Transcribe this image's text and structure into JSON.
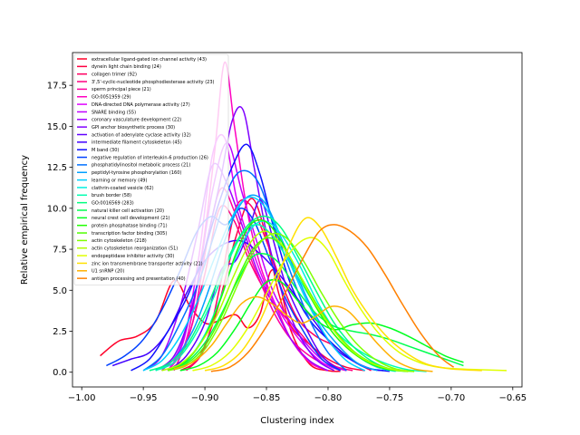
{
  "chart_data": {
    "type": "line",
    "title": "",
    "xlabel": "Clustering index",
    "ylabel": "Relative empirical frequency",
    "xlim": [
      -1.0075,
      -0.6425
    ],
    "ylim": [
      -0.9,
      19.5
    ],
    "xticks": [
      -1.0,
      -0.95,
      -0.9,
      -0.85,
      -0.8,
      -0.75,
      -0.7,
      -0.65
    ],
    "xtick_labels": [
      "−1.00",
      "−0.95",
      "−0.90",
      "−0.85",
      "−0.80",
      "−0.75",
      "−0.70",
      "−0.65"
    ],
    "yticks": [
      0.0,
      2.5,
      5.0,
      7.5,
      10.0,
      12.5,
      15.0,
      17.5
    ],
    "ytick_labels": [
      "0.0",
      "2.5",
      "5.0",
      "7.5",
      "10.0",
      "12.5",
      "15.0",
      "17.5"
    ],
    "grid": false,
    "legend_position": "top-left",
    "series": [
      {
        "name": "extracellular ligand-gated ion channel activity (43)",
        "color": "#ff0029",
        "x": [
          -0.985,
          -0.97,
          -0.955,
          -0.94,
          -0.925,
          -0.912,
          -0.9,
          -0.89,
          -0.875,
          -0.865,
          -0.855,
          -0.847,
          -0.84,
          -0.83,
          -0.815,
          -0.8,
          -0.79
        ],
        "y": [
          1.0,
          1.9,
          2.2,
          3.1,
          5.6,
          4.0,
          3.0,
          3.1,
          3.5,
          2.7,
          3.6,
          6.1,
          5.6,
          2.5,
          0.5,
          0.1,
          0.05
        ]
      },
      {
        "name": "dynein light chain binding (24)",
        "color": "#ff0040",
        "x": [
          -0.92,
          -0.905,
          -0.89,
          -0.875,
          -0.862,
          -0.85,
          -0.84,
          -0.83,
          -0.815,
          -0.8,
          -0.785,
          -0.77
        ],
        "y": [
          0.1,
          0.9,
          3.8,
          8.2,
          10.6,
          8.2,
          4.8,
          2.8,
          1.7,
          0.8,
          0.3,
          0.1
        ]
      },
      {
        "name": "collagen trimer (92)",
        "color": "#ff0060",
        "x": [
          -0.915,
          -0.9,
          -0.887,
          -0.875,
          -0.863,
          -0.85,
          -0.838,
          -0.825,
          -0.81,
          -0.795,
          -0.78,
          -0.765
        ],
        "y": [
          0.1,
          1.5,
          5.5,
          10.0,
          10.2,
          8.0,
          5.5,
          3.3,
          2.2,
          1.6,
          0.7,
          0.1
        ]
      },
      {
        "name": "3',5'-cyclic-nucleotide phosphodiesterase activity (23)",
        "color": "#ff0080",
        "x": [
          -0.93,
          -0.915,
          -0.9,
          -0.888,
          -0.876,
          -0.865,
          -0.853,
          -0.84,
          -0.825,
          -0.81,
          -0.795,
          -0.78
        ],
        "y": [
          0.1,
          1.8,
          6.0,
          10.0,
          9.2,
          7.0,
          5.2,
          3.8,
          2.6,
          1.3,
          0.4,
          0.1
        ]
      },
      {
        "name": "sperm principal piece (21)",
        "color": "#ff00a0",
        "x": [
          -0.925,
          -0.91,
          -0.898,
          -0.887,
          -0.876,
          -0.866,
          -0.855,
          -0.843,
          -0.83,
          -0.815,
          -0.8,
          -0.785
        ],
        "y": [
          0.1,
          3.0,
          8.0,
          11.2,
          9.8,
          7.6,
          5.5,
          3.5,
          2.0,
          1.0,
          0.4,
          0.1
        ]
      },
      {
        "name": "GO:0051959 (29)",
        "color": "#ff00c0",
        "x": [
          -0.93,
          -0.915,
          -0.902,
          -0.892,
          -0.884,
          -0.876,
          -0.866,
          -0.855,
          -0.842,
          -0.83,
          -0.815,
          -0.8
        ],
        "y": [
          0.1,
          2.0,
          7.5,
          13.5,
          18.9,
          15.0,
          10.0,
          6.5,
          4.0,
          2.0,
          0.6,
          0.1
        ]
      },
      {
        "name": "DNA-directed DNA polymerase activity (27)",
        "color": "#e000ff",
        "x": [
          -0.93,
          -0.917,
          -0.905,
          -0.894,
          -0.884,
          -0.874,
          -0.863,
          -0.85,
          -0.836,
          -0.82,
          -0.805,
          -0.79
        ],
        "y": [
          0.1,
          2.0,
          7.0,
          13.2,
          14.3,
          10.5,
          7.8,
          5.2,
          3.3,
          1.7,
          0.6,
          0.1
        ]
      },
      {
        "name": "SNARE binding (55)",
        "color": "#c000ff",
        "x": [
          -0.935,
          -0.92,
          -0.906,
          -0.894,
          -0.882,
          -0.87,
          -0.858,
          -0.845,
          -0.83,
          -0.815,
          -0.8,
          -0.785
        ],
        "y": [
          0.1,
          1.5,
          5.5,
          11.0,
          14.0,
          11.0,
          8.0,
          5.0,
          3.0,
          1.5,
          0.5,
          0.1
        ]
      },
      {
        "name": "coronary vasculature development (22)",
        "color": "#a000ff",
        "x": [
          -0.95,
          -0.935,
          -0.92,
          -0.906,
          -0.894,
          -0.882,
          -0.87,
          -0.858,
          -0.845,
          -0.83,
          -0.815,
          -0.8
        ],
        "y": [
          0.1,
          1.0,
          4.0,
          8.5,
          12.6,
          11.5,
          9.0,
          6.3,
          4.2,
          2.0,
          0.7,
          0.1
        ]
      },
      {
        "name": "GPI anchor biosynthetic process (30)",
        "color": "#8000ff",
        "x": [
          -0.94,
          -0.925,
          -0.912,
          -0.9,
          -0.888,
          -0.878,
          -0.869,
          -0.86,
          -0.85,
          -0.838,
          -0.825,
          -0.81,
          -0.795
        ],
        "y": [
          0.1,
          1.0,
          3.5,
          7.5,
          11.5,
          15.3,
          16.0,
          12.5,
          8.5,
          5.0,
          2.5,
          0.8,
          0.1
        ]
      },
      {
        "name": "activation of adenylate cyclase activity (32)",
        "color": "#6000ff",
        "x": [
          -0.93,
          -0.915,
          -0.9,
          -0.887,
          -0.875,
          -0.865,
          -0.855,
          -0.845,
          -0.835,
          -0.82,
          -0.805,
          -0.79
        ],
        "y": [
          0.1,
          1.0,
          3.0,
          6.2,
          6.8,
          8.5,
          10.5,
          8.2,
          5.5,
          3.0,
          1.0,
          0.1
        ]
      },
      {
        "name": "intermediate filament cytoskeleton (45)",
        "color": "#4000ff",
        "x": [
          -0.975,
          -0.96,
          -0.945,
          -0.93,
          -0.915,
          -0.9,
          -0.885,
          -0.87,
          -0.855,
          -0.84,
          -0.825,
          -0.81,
          -0.795,
          -0.78,
          -0.765,
          -0.755
        ],
        "y": [
          0.4,
          0.8,
          1.2,
          2.5,
          4.8,
          6.8,
          7.8,
          8.0,
          7.2,
          6.0,
          4.5,
          3.0,
          1.5,
          0.7,
          0.2,
          0.1
        ]
      },
      {
        "name": "M band (30)",
        "color": "#1010ff",
        "x": [
          -0.96,
          -0.945,
          -0.93,
          -0.915,
          -0.902,
          -0.89,
          -0.878,
          -0.866,
          -0.855,
          -0.843,
          -0.83,
          -0.815,
          -0.8,
          -0.785,
          -0.77,
          -0.75
        ],
        "y": [
          0.1,
          0.8,
          2.5,
          4.5,
          7.0,
          10.0,
          12.5,
          13.9,
          12.0,
          8.5,
          5.3,
          3.2,
          2.0,
          1.0,
          0.3,
          0.05
        ]
      },
      {
        "name": "negative regulation of interleukin-6 production (26)",
        "color": "#0040ff",
        "x": [
          -0.98,
          -0.965,
          -0.95,
          -0.935,
          -0.92,
          -0.907,
          -0.895,
          -0.883,
          -0.871,
          -0.86,
          -0.848,
          -0.835,
          -0.82,
          -0.805,
          -0.79
        ],
        "y": [
          0.4,
          1.0,
          2.0,
          3.8,
          6.2,
          8.5,
          9.5,
          9.0,
          10.0,
          9.2,
          7.0,
          4.6,
          2.5,
          0.8,
          0.1
        ]
      },
      {
        "name": "phosphatidylinositol metabolic process (21)",
        "color": "#0070ff",
        "x": [
          -0.95,
          -0.935,
          -0.92,
          -0.905,
          -0.892,
          -0.879,
          -0.868,
          -0.856,
          -0.844,
          -0.83,
          -0.815,
          -0.8,
          -0.785
        ],
        "y": [
          0.1,
          1.0,
          3.0,
          5.5,
          8.5,
          11.5,
          12.3,
          11.5,
          9.0,
          6.0,
          3.2,
          1.2,
          0.1
        ]
      },
      {
        "name": "peptidyl-tyrosine phosphorylation (160)",
        "color": "#00a0ff",
        "x": [
          -0.94,
          -0.925,
          -0.91,
          -0.897,
          -0.885,
          -0.873,
          -0.862,
          -0.85,
          -0.837,
          -0.823,
          -0.808,
          -0.79,
          -0.775,
          -0.76
        ],
        "y": [
          0.1,
          0.8,
          2.5,
          5.0,
          7.8,
          10.0,
          10.8,
          10.2,
          8.0,
          5.5,
          3.2,
          1.5,
          0.5,
          0.1
        ]
      },
      {
        "name": "learning or memory (49)",
        "color": "#00d0ff",
        "x": [
          -0.95,
          -0.935,
          -0.92,
          -0.905,
          -0.892,
          -0.879,
          -0.867,
          -0.855,
          -0.843,
          -0.83,
          -0.815,
          -0.8,
          -0.785,
          -0.77
        ],
        "y": [
          0.1,
          0.7,
          2.2,
          4.5,
          7.0,
          9.3,
          10.6,
          10.4,
          9.0,
          6.5,
          4.0,
          2.0,
          0.7,
          0.1
        ]
      },
      {
        "name": "clathrin-coated vesicle (62)",
        "color": "#00f0e0",
        "x": [
          -0.93,
          -0.915,
          -0.9,
          -0.887,
          -0.875,
          -0.862,
          -0.85,
          -0.837,
          -0.823,
          -0.808,
          -0.792,
          -0.776,
          -0.76,
          -0.745
        ],
        "y": [
          0.1,
          0.7,
          2.3,
          4.6,
          7.0,
          8.8,
          9.2,
          8.3,
          6.5,
          4.2,
          2.3,
          1.0,
          0.3,
          0.05
        ]
      },
      {
        "name": "brush border (58)",
        "color": "#00ffb0",
        "x": [
          -0.94,
          -0.925,
          -0.91,
          -0.895,
          -0.882,
          -0.869,
          -0.857,
          -0.845,
          -0.832,
          -0.818,
          -0.803,
          -0.787,
          -0.77,
          -0.752,
          -0.735,
          -0.72
        ],
        "y": [
          0.1,
          0.6,
          2.0,
          4.2,
          6.6,
          8.5,
          9.0,
          8.3,
          6.8,
          5.0,
          3.3,
          2.0,
          1.1,
          0.5,
          0.15,
          0.05
        ]
      },
      {
        "name": "GO:0016569 (283)",
        "color": "#00ff80",
        "x": [
          -0.945,
          -0.93,
          -0.915,
          -0.9,
          -0.887,
          -0.874,
          -0.862,
          -0.85,
          -0.838,
          -0.824,
          -0.81,
          -0.795,
          -0.78,
          -0.765,
          -0.75,
          -0.735
        ],
        "y": [
          0.1,
          0.5,
          1.6,
          3.7,
          6.0,
          8.0,
          9.2,
          9.5,
          8.8,
          7.0,
          5.0,
          3.0,
          1.6,
          0.7,
          0.2,
          0.05
        ]
      },
      {
        "name": "natural killer cell activation (20)",
        "color": "#00ff50",
        "x": [
          -0.93,
          -0.915,
          -0.9,
          -0.887,
          -0.874,
          -0.862,
          -0.85,
          -0.838,
          -0.825,
          -0.81,
          -0.795,
          -0.78,
          -0.765,
          -0.75,
          -0.735,
          -0.72,
          -0.705,
          -0.69
        ],
        "y": [
          0.1,
          0.6,
          1.8,
          3.5,
          5.5,
          7.0,
          7.2,
          6.5,
          5.0,
          3.6,
          2.8,
          2.5,
          2.3,
          2.0,
          1.6,
          1.2,
          0.8,
          0.4
        ]
      },
      {
        "name": "neural crest cell development (21)",
        "color": "#00ff20",
        "x": [
          -0.92,
          -0.905,
          -0.89,
          -0.875,
          -0.862,
          -0.85,
          -0.838,
          -0.825,
          -0.81,
          -0.795,
          -0.78,
          -0.765,
          -0.75,
          -0.735,
          -0.72,
          -0.705,
          -0.69
        ],
        "y": [
          0.1,
          0.4,
          1.2,
          2.7,
          4.3,
          5.5,
          5.5,
          4.4,
          3.2,
          2.6,
          2.9,
          3.0,
          2.7,
          2.2,
          1.6,
          1.0,
          0.6
        ]
      },
      {
        "name": "protein phosphatase binding (71)",
        "color": "#20ff00",
        "x": [
          -0.93,
          -0.915,
          -0.9,
          -0.887,
          -0.875,
          -0.863,
          -0.851,
          -0.838,
          -0.824,
          -0.81,
          -0.795,
          -0.78,
          -0.765,
          -0.75,
          -0.735
        ],
        "y": [
          0.1,
          0.7,
          2.2,
          4.5,
          7.2,
          9.0,
          9.2,
          8.0,
          6.0,
          4.0,
          2.3,
          1.2,
          0.5,
          0.15,
          0.05
        ]
      },
      {
        "name": "transcription factor binding (305)",
        "color": "#50ff00",
        "x": [
          -0.93,
          -0.915,
          -0.9,
          -0.886,
          -0.873,
          -0.86,
          -0.848,
          -0.835,
          -0.822,
          -0.808,
          -0.793,
          -0.778,
          -0.762,
          -0.746,
          -0.73
        ],
        "y": [
          0.1,
          0.5,
          1.6,
          3.5,
          5.8,
          7.6,
          8.2,
          7.5,
          5.8,
          4.0,
          2.4,
          1.2,
          0.5,
          0.15,
          0.05
        ]
      },
      {
        "name": "actin cytoskeleton (218)",
        "color": "#80ff00",
        "x": [
          -0.93,
          -0.915,
          -0.9,
          -0.886,
          -0.873,
          -0.86,
          -0.847,
          -0.834,
          -0.82,
          -0.805,
          -0.79,
          -0.775,
          -0.76,
          -0.745,
          -0.73
        ],
        "y": [
          0.1,
          0.4,
          1.4,
          3.2,
          5.4,
          7.4,
          8.4,
          8.2,
          6.8,
          4.8,
          3.0,
          1.6,
          0.7,
          0.2,
          0.05
        ]
      },
      {
        "name": "actin cytoskeleton reorganization (51)",
        "color": "#b0ff00",
        "x": [
          -0.935,
          -0.92,
          -0.905,
          -0.89,
          -0.877,
          -0.864,
          -0.852,
          -0.84,
          -0.827,
          -0.813,
          -0.798,
          -0.782,
          -0.766,
          -0.75,
          -0.735
        ],
        "y": [
          0.1,
          0.5,
          1.6,
          3.5,
          5.8,
          7.8,
          8.6,
          8.0,
          6.5,
          4.5,
          2.8,
          1.4,
          0.6,
          0.2,
          0.05
        ]
      },
      {
        "name": "endopeptidase inhibitor activity (30)",
        "color": "#e0ff00",
        "x": [
          -0.91,
          -0.895,
          -0.88,
          -0.866,
          -0.852,
          -0.838,
          -0.825,
          -0.812,
          -0.8,
          -0.787,
          -0.773,
          -0.758,
          -0.742,
          -0.726,
          -0.71,
          -0.693,
          -0.675,
          -0.655
        ],
        "y": [
          0.1,
          0.4,
          1.2,
          2.6,
          4.5,
          6.5,
          7.8,
          8.2,
          7.4,
          5.6,
          3.8,
          2.3,
          1.2,
          0.6,
          0.3,
          0.2,
          0.15,
          0.1
        ]
      },
      {
        "name": "zinc ion transmembrane transporter activity (21)",
        "color": "#ffe000",
        "x": [
          -0.9,
          -0.885,
          -0.87,
          -0.856,
          -0.842,
          -0.83,
          -0.818,
          -0.806,
          -0.793,
          -0.78,
          -0.765,
          -0.75,
          -0.735,
          -0.72,
          -0.705,
          -0.69,
          -0.675
        ],
        "y": [
          0.1,
          0.4,
          1.3,
          3.0,
          5.5,
          8.0,
          9.4,
          8.8,
          7.0,
          5.0,
          3.3,
          2.0,
          1.1,
          0.5,
          0.25,
          0.15,
          0.1
        ]
      },
      {
        "name": "U1 snRNP (20)",
        "color": "#ffb000",
        "x": [
          -0.925,
          -0.91,
          -0.895,
          -0.882,
          -0.87,
          -0.858,
          -0.846,
          -0.834,
          -0.822,
          -0.81,
          -0.798,
          -0.785,
          -0.772,
          -0.758,
          -0.745,
          -0.73,
          -0.715
        ],
        "y": [
          0.2,
          0.6,
          1.6,
          3.0,
          4.2,
          4.6,
          4.2,
          3.5,
          3.0,
          3.4,
          4.0,
          3.8,
          2.8,
          1.6,
          0.7,
          0.2,
          0.05
        ]
      },
      {
        "name": "antigen processing and presentation (40)",
        "color": "#ff8000",
        "x": [
          -0.895,
          -0.88,
          -0.865,
          -0.85,
          -0.835,
          -0.82,
          -0.807,
          -0.795,
          -0.782,
          -0.768,
          -0.754,
          -0.74,
          -0.725,
          -0.71,
          -0.698
        ],
        "y": [
          0.05,
          0.3,
          1.2,
          2.8,
          4.8,
          7.0,
          8.6,
          9.0,
          8.6,
          7.6,
          6.0,
          4.2,
          2.4,
          1.0,
          0.3
        ]
      }
    ]
  }
}
